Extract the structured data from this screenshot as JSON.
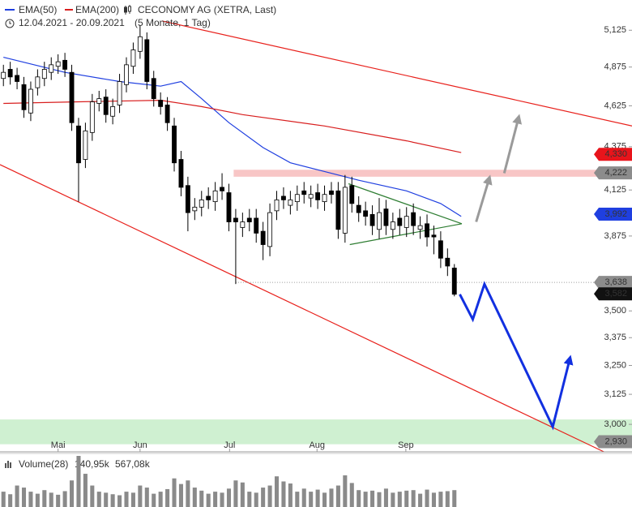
{
  "chart_data": {
    "type": "candlestick",
    "title": "CECONOMY AG (XETRA, Last)",
    "date_range": "12.04.2021 - 20.09.2021",
    "period": "(5 Monate, 1 Tag)",
    "log_scale": true,
    "xlim": [
      -0.5,
      92
    ],
    "ylim": [
      2.89,
      5.34
    ],
    "xticks": [
      {
        "value": 8,
        "label": "Mai"
      },
      {
        "value": 20,
        "label": "Jun"
      },
      {
        "value": 33.1,
        "label": "Jul"
      },
      {
        "value": 45.9,
        "label": "Aug"
      },
      {
        "value": 58.9,
        "label": "Sep"
      }
    ],
    "yticks": [
      {
        "value": 3,
        "label": "3,000"
      },
      {
        "value": 3.125,
        "label": "3,125"
      },
      {
        "value": 3.25,
        "label": "3,250"
      },
      {
        "value": 3.375,
        "label": "3,375"
      },
      {
        "value": 3.5,
        "label": "3,500"
      },
      {
        "value": 3.875,
        "label": "3,875"
      },
      {
        "value": 4.125,
        "label": "4,125"
      },
      {
        "value": 4.375,
        "label": "4,375"
      },
      {
        "value": 4.625,
        "label": "4,625"
      },
      {
        "value": 4.875,
        "label": "4,875"
      },
      {
        "value": 5.125,
        "label": "5,125"
      }
    ],
    "up_color": "#ffffff",
    "down_color": "#000000",
    "x": [
      0,
      1,
      2,
      3,
      4,
      5,
      6,
      7,
      8,
      9,
      10,
      11,
      12,
      13,
      14,
      15,
      16,
      17,
      18,
      19,
      20,
      21,
      22,
      23,
      24,
      25,
      26,
      27,
      28,
      29,
      30,
      31,
      32,
      33,
      34,
      35,
      36,
      37,
      38,
      39,
      40,
      41,
      42,
      43,
      44,
      45,
      46,
      47,
      48,
      49,
      50,
      51,
      52,
      53,
      54,
      55,
      56,
      57,
      58,
      59,
      60,
      61,
      62,
      63,
      64,
      65,
      66
    ],
    "open": [
      4.8,
      4.86,
      4.82,
      4.76,
      4.58,
      4.74,
      4.8,
      4.84,
      4.88,
      4.92,
      4.84,
      4.5,
      4.3,
      4.46,
      4.64,
      4.68,
      4.56,
      4.63,
      4.76,
      4.88,
      4.98,
      5.06,
      4.8,
      4.66,
      4.63,
      4.5,
      4.3,
      4.15,
      4.01,
      4.03,
      4.09,
      4.06,
      4.14,
      4.11,
      3.97,
      3.92,
      3.97,
      3.97,
      3.9,
      3.82,
      4.01,
      4.09,
      4.04,
      4.06,
      4.12,
      4.08,
      4.11,
      4.06,
      4.12,
      4.12,
      3.89,
      4.15,
      4.04,
      4.01,
      3.99,
      3.91,
      4.02,
      3.91,
      3.97,
      3.92,
      4.0,
      3.91,
      3.94,
      3.88,
      3.85,
      3.76,
      3.71
    ],
    "high": [
      4.89,
      4.91,
      4.87,
      4.81,
      4.78,
      4.86,
      4.91,
      4.94,
      4.96,
      4.97,
      4.89,
      4.55,
      4.52,
      4.7,
      4.72,
      4.73,
      4.67,
      4.83,
      4.94,
      5.04,
      5.16,
      5.11,
      4.85,
      4.71,
      4.68,
      4.55,
      4.35,
      4.2,
      4.08,
      4.12,
      4.14,
      4.17,
      4.22,
      4.16,
      4.02,
      4.0,
      4.02,
      4.02,
      3.95,
      4.05,
      4.12,
      4.14,
      4.12,
      4.15,
      4.17,
      4.15,
      4.16,
      4.15,
      4.17,
      4.17,
      4.21,
      4.2,
      4.09,
      4.06,
      4.04,
      4.08,
      4.07,
      4.0,
      4.02,
      4.03,
      4.05,
      3.98,
      3.99,
      3.93,
      3.9,
      3.81,
      3.73
    ],
    "low": [
      4.75,
      4.76,
      4.73,
      4.55,
      4.53,
      4.69,
      4.75,
      4.79,
      4.83,
      4.81,
      4.47,
      4.06,
      4.25,
      4.41,
      4.59,
      4.52,
      4.51,
      4.58,
      4.71,
      4.83,
      4.93,
      4.73,
      4.62,
      4.57,
      4.47,
      4.23,
      4.09,
      3.9,
      3.96,
      3.98,
      4.02,
      4.01,
      4.07,
      3.9,
      3.63,
      3.87,
      3.9,
      3.84,
      3.75,
      3.77,
      3.96,
      4.02,
      3.99,
      4.01,
      4.05,
      4.03,
      4.02,
      4.01,
      4.05,
      3.86,
      3.84,
      4.0,
      3.95,
      3.93,
      3.88,
      3.86,
      3.88,
      3.86,
      3.88,
      3.87,
      3.88,
      3.86,
      3.82,
      3.78,
      3.71,
      3.67,
      3.57
    ],
    "close": [
      4.84,
      4.81,
      4.78,
      4.6,
      4.73,
      4.81,
      4.86,
      4.89,
      4.91,
      4.86,
      4.52,
      4.28,
      4.47,
      4.65,
      4.67,
      4.57,
      4.62,
      4.78,
      4.89,
      4.99,
      5.08,
      4.78,
      4.67,
      4.62,
      4.52,
      4.28,
      4.14,
      4.0,
      4.03,
      4.07,
      4.07,
      4.12,
      4.12,
      3.95,
      3.95,
      3.95,
      3.95,
      3.89,
      3.83,
      4.0,
      4.07,
      4.07,
      4.07,
      4.1,
      4.1,
      4.1,
      4.07,
      4.1,
      4.1,
      3.91,
      4.14,
      4.05,
      4.0,
      3.98,
      3.93,
      4.0,
      3.93,
      3.95,
      3.93,
      3.98,
      3.93,
      3.93,
      3.87,
      3.87,
      3.76,
      3.72,
      3.58
    ],
    "lines": [
      {
        "name": "EMA(50)",
        "color": "#1f3fe0",
        "x": [
          0,
          9,
          17,
          23,
          26,
          29,
          33,
          38,
          42,
          47,
          52,
          59,
          64,
          67
        ],
        "values": [
          4.94,
          4.84,
          4.78,
          4.75,
          4.78,
          4.67,
          4.52,
          4.37,
          4.28,
          4.23,
          4.18,
          4.12,
          4.05,
          3.98
        ]
      },
      {
        "name": "EMA(200)",
        "color": "#d81e1e",
        "x": [
          0,
          11,
          23,
          29,
          35,
          47,
          59,
          67
        ],
        "values": [
          4.64,
          4.65,
          4.66,
          4.62,
          4.57,
          4.5,
          4.41,
          4.34
        ]
      }
    ],
    "trendlines": [
      {
        "color": "#e8201b",
        "x": [
          23.2,
          92
        ],
        "values": [
          5.19,
          4.5
        ]
      },
      {
        "color": "#e8201b",
        "x": [
          -0.5,
          87.9
        ],
        "values": [
          4.27,
          2.89
        ]
      },
      {
        "color": "#2e7d32",
        "x": [
          50.5,
          67.1
        ],
        "values": [
          4.16,
          3.94
        ]
      },
      {
        "color": "#2e7d32",
        "x": [
          50.7,
          67.1
        ],
        "values": [
          3.83,
          3.94
        ]
      }
    ],
    "arrows": [
      {
        "color": "#9a9a9a",
        "width": 3,
        "x": [
          69.2,
          71.1
        ],
        "values": [
          3.95,
          4.19
        ]
      },
      {
        "color": "#9a9a9a",
        "width": 3,
        "x": [
          73.3,
          75.4
        ],
        "values": [
          4.22,
          4.55
        ]
      },
      {
        "color": "#1230e0",
        "width": 3,
        "x": [
          66.8,
          68.7,
          70.4,
          80.4,
          82.9
        ],
        "values": [
          3.58,
          3.46,
          3.63,
          2.99,
          3.28
        ]
      }
    ],
    "zones": [
      {
        "color": "#f6b8b8",
        "range": [
          4.2,
          4.24
        ],
        "x_start": 33.7
      },
      {
        "color": "#c3ecc6",
        "range": [
          2.92,
          3.02
        ],
        "x_start": -0.5
      }
    ],
    "price_labels": [
      {
        "value": 4.33,
        "label": "4,330",
        "color": "#e8141b"
      },
      {
        "value": 4.222,
        "label": "4,222",
        "color": "#8c8c8c"
      },
      {
        "value": 3.992,
        "label": "3,992",
        "color": "#1f3fe0"
      },
      {
        "value": 3.638,
        "label": "3,638",
        "color": "#8c8c8c",
        "dotted_from": 34
      },
      {
        "value": 3.582,
        "label": "3,582",
        "color": "#111111"
      },
      {
        "value": 2.93,
        "label": "2,930",
        "color": "#8c8c8c"
      }
    ],
    "volume": {
      "title": "Volume(28)",
      "average": {
        "value": 140.95,
        "label": "140,95k",
        "color": "#777777"
      },
      "peak": {
        "value": 567.08,
        "label": "567,08k",
        "color": "#e6b800"
      },
      "color": "#8a8a8a",
      "ylim": [
        0,
        1000
      ],
      "values": [
        300,
        250,
        420,
        380,
        300,
        260,
        330,
        280,
        240,
        310,
        520,
        1000,
        650,
        420,
        300,
        280,
        250,
        230,
        300,
        280,
        420,
        380,
        260,
        300,
        350,
        560,
        450,
        520,
        380,
        320,
        260,
        300,
        280,
        360,
        520,
        480,
        300,
        280,
        380,
        420,
        600,
        500,
        460,
        300,
        360,
        300,
        340,
        280,
        360,
        420,
        620,
        470,
        330,
        300,
        320,
        290,
        360,
        280,
        300,
        320,
        330,
        260,
        340,
        280,
        300,
        310,
        330
      ]
    }
  }
}
